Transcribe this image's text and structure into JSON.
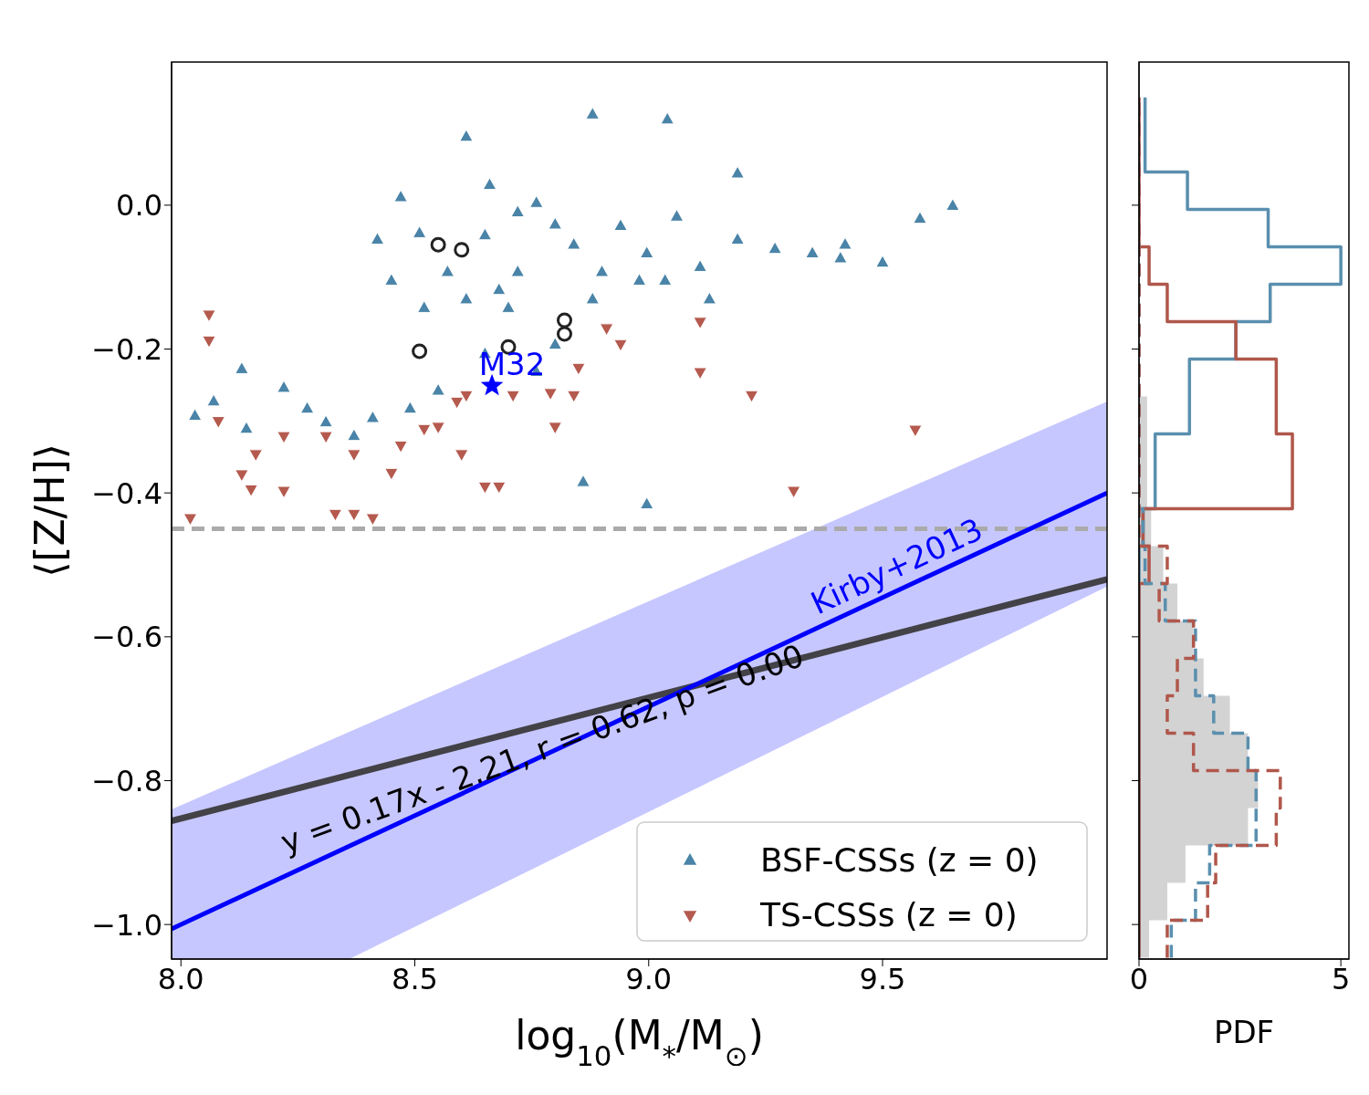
{
  "chart_data": [
    {
      "type": "scatter",
      "xlabel": "log$_{10}$(M$_{*}$/M$_{⊙}$)",
      "ylabel": "⟨[Z/H]⟩",
      "xlim": [
        7.98,
        9.98
      ],
      "ylim": [
        -1.048,
        0.199
      ],
      "xticks": [
        {
          "value": 8,
          "label": "8.0"
        },
        {
          "value": 8.5,
          "label": "8.5"
        },
        {
          "value": 9,
          "label": "9.0"
        },
        {
          "value": 9.5,
          "label": "9.5"
        }
      ],
      "yticks": [
        {
          "value": -1,
          "label": "−1.0"
        },
        {
          "value": -0.8,
          "label": "−0.8"
        },
        {
          "value": -0.6,
          "label": "−0.6"
        },
        {
          "value": -0.4,
          "label": "−0.4"
        },
        {
          "value": -0.2,
          "label": "−0.2"
        },
        {
          "value": 0,
          "label": "0.0"
        }
      ],
      "legend": "bottom right",
      "grid": false,
      "ref_lines": [
        {
          "axis": "y",
          "value": -0.45,
          "color": "#aaaaaa",
          "line_style": "dashed"
        }
      ],
      "annotations": [
        {
          "text": "y = 0.17x - 2.21, r = 0.62, p = 0.00",
          "x": 8.78,
          "y": -0.77
        }
      ],
      "series": [
        {
          "name": "BSF-CSSs (z = 0)",
          "type": "scatter",
          "marker": "triangle",
          "color": "#4a84a8",
          "x": [
            9.04,
            8.88,
            8.61,
            9.19,
            9.65,
            9.58,
            8.47,
            8.03,
            8.07,
            8.13,
            8.14,
            8.22,
            8.27,
            8.31,
            8.42,
            8.45,
            8.52,
            8.57,
            8.65,
            8.72,
            8.76,
            8.8,
            8.84,
            8.9,
            8.94,
            8.996,
            9.035,
            9.11,
            9.19,
            9.27,
            9.35,
            9.41,
            9.5,
            9.42,
            9.06,
            8.68,
            8.72,
            8.61,
            8.55,
            8.49,
            8.41,
            8.37,
            8.65,
            8.8,
            8.76,
            8.7,
            8.88,
            8.98,
            9.13,
            8.66,
            8.51,
            8.86,
            8.996
          ],
          "values": [
            0.119,
            0.126,
            0.095,
            0.044,
            -0.001,
            -0.019,
            0.011,
            -0.293,
            -0.273,
            -0.228,
            -0.311,
            -0.254,
            -0.283,
            -0.302,
            -0.048,
            -0.105,
            -0.143,
            -0.093,
            -0.042,
            -0.01,
            0.003,
            -0.027,
            -0.055,
            -0.093,
            -0.029,
            -0.067,
            -0.105,
            -0.086,
            -0.048,
            -0.061,
            -0.067,
            -0.074,
            -0.08,
            -0.055,
            -0.016,
            -0.118,
            -0.093,
            -0.131,
            -0.258,
            -0.283,
            -0.296,
            -0.321,
            -0.207,
            -0.194,
            -0.232,
            -0.143,
            -0.131,
            -0.105,
            -0.131,
            0.028,
            -0.039,
            -0.385,
            -0.416
          ]
        },
        {
          "name": "TS-CSSs (z = 0)",
          "type": "scatter",
          "marker": "triangle-down",
          "color": "#b55a4e",
          "x": [
            8.06,
            8.06,
            8.08,
            8.13,
            8.15,
            8.02,
            8.22,
            8.33,
            8.37,
            8.41,
            8.45,
            8.52,
            8.55,
            8.6,
            8.65,
            8.68,
            8.71,
            8.79,
            8.84,
            8.85,
            8.91,
            8.94,
            9.11,
            9.22,
            9.31,
            9.57,
            8.8,
            8.59,
            8.37,
            8.31,
            8.61,
            9.11,
            8.22,
            8.16,
            8.47
          ],
          "values": [
            -0.152,
            -0.188,
            -0.3,
            -0.374,
            -0.395,
            -0.435,
            -0.321,
            -0.429,
            -0.429,
            -0.435,
            -0.372,
            -0.311,
            -0.308,
            -0.346,
            -0.391,
            -0.391,
            -0.264,
            -0.261,
            -0.264,
            -0.226,
            -0.171,
            -0.193,
            -0.162,
            -0.264,
            -0.397,
            -0.312,
            -0.308,
            -0.273,
            -0.346,
            -0.321,
            -0.264,
            -0.232,
            -0.397,
            -0.346,
            -0.334
          ]
        },
        {
          "type": "scatter",
          "marker": "circle",
          "color": "#222222",
          "x": [
            8.55,
            8.6,
            8.51,
            8.82,
            8.82,
            8.7
          ],
          "values": [
            -0.055,
            -0.062,
            -0.203,
            -0.16,
            -0.179,
            -0.197
          ]
        },
        {
          "name": "M32",
          "type": "scatter",
          "marker": "star",
          "color": "#0000ff",
          "x": [
            8.665
          ],
          "values": [
            -0.251
          ]
        },
        {
          "type": "line",
          "color": "#333333",
          "x": [
            7.98,
            9.98
          ],
          "values": [
            -0.856,
            -0.52
          ]
        },
        {
          "name": "Kirby+2013",
          "type": "line",
          "color": "#0000ff",
          "x": [
            7.98,
            8.36,
            9.98
          ],
          "values": [
            -1.006,
            -0.891,
            -0.4
          ],
          "lower": [
            -1.048,
            -1.048,
            -0.53
          ],
          "upper": [
            -0.84,
            -0.732,
            -0.273
          ]
        }
      ]
    },
    {
      "type": "histogram",
      "orientation": "horizontal",
      "xlabel": "PDF",
      "xlim": [
        0,
        5.2
      ],
      "ylim": [
        -1.048,
        0.199
      ],
      "xticks": [
        0,
        5
      ],
      "yticks": [
        -1,
        -0.8,
        -0.6,
        -0.4,
        -0.2,
        0
      ],
      "tick_labels": "x",
      "grid": false,
      "bins": [
        -1.046,
        -0.994,
        -0.942,
        -0.89,
        -0.838,
        -0.786,
        -0.734,
        -0.682,
        -0.63,
        -0.578,
        -0.526,
        -0.474,
        -0.422,
        -0.37,
        -0.318,
        -0.266,
        -0.214,
        -0.162,
        -0.11,
        -0.058,
        -0.006,
        0.046,
        0.098,
        0.15
      ],
      "series": [
        {
          "type": "histogram",
          "color": "#d3d3d3",
          "values": [
            0.25,
            0.7,
            1.15,
            2.7,
            2.95,
            2.7,
            2.25,
            1.6,
            1.35,
            0.95,
            0.6,
            0.3,
            0.2,
            0.2,
            0.2,
            0,
            0,
            0,
            0,
            0,
            0,
            0,
            0
          ]
        },
        {
          "type": "histogram",
          "color": "#5a8fae",
          "line_style": "solid",
          "values": [
            0,
            0,
            0,
            0,
            0,
            0,
            0,
            0,
            0,
            0,
            0,
            0.1,
            0.4,
            0.4,
            1.25,
            1.25,
            2.4,
            3.25,
            5.0,
            3.2,
            1.2,
            0.15,
            0.15
          ]
        },
        {
          "type": "histogram",
          "color": "#b0574b",
          "line_style": "solid",
          "values": [
            0,
            0,
            0,
            0,
            0,
            0,
            0,
            0,
            0,
            0,
            0.25,
            0.1,
            3.8,
            3.8,
            3.4,
            3.4,
            2.4,
            0.7,
            0.25,
            0,
            0,
            0,
            0
          ]
        },
        {
          "type": "histogram",
          "color": "#5a8fae",
          "line_style": "dashed",
          "values": [
            0.8,
            1.4,
            1.75,
            2.9,
            2.9,
            2.7,
            1.85,
            1.4,
            1.4,
            0.65,
            0.15,
            0.1,
            0,
            0,
            0,
            0,
            0,
            0,
            0,
            0,
            0,
            0,
            0
          ]
        },
        {
          "type": "histogram",
          "color": "#b0574b",
          "line_style": "dashed",
          "values": [
            0.7,
            1.7,
            1.9,
            3.4,
            3.5,
            1.35,
            0.7,
            0.95,
            1.35,
            0.5,
            0.7,
            0,
            0,
            0,
            0,
            0,
            0,
            0,
            0,
            0,
            0,
            0,
            0
          ]
        }
      ]
    }
  ]
}
